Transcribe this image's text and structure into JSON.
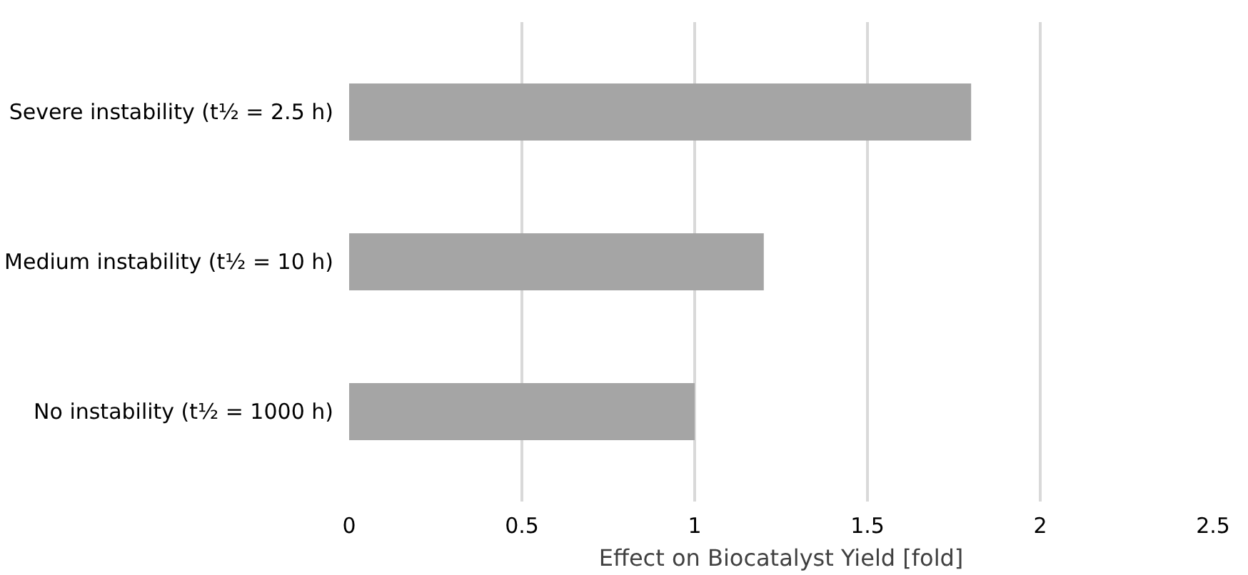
{
  "chart_data": {
    "type": "bar",
    "orientation": "horizontal",
    "xlabel": "Effect on Biocatalyst Yield [fold]",
    "categories": [
      "Severe instability (t½ = 2.5 h)",
      "Medium instability (t½ = 10 h)",
      "No instability (t½ = 1000 h)"
    ],
    "values": [
      1.8,
      1.2,
      1.0
    ],
    "color": "#a5a5a5",
    "xlim": [
      0,
      2.5
    ],
    "xticks": [
      0,
      0.5,
      1,
      1.5,
      2,
      2.5
    ],
    "grid": "x"
  }
}
